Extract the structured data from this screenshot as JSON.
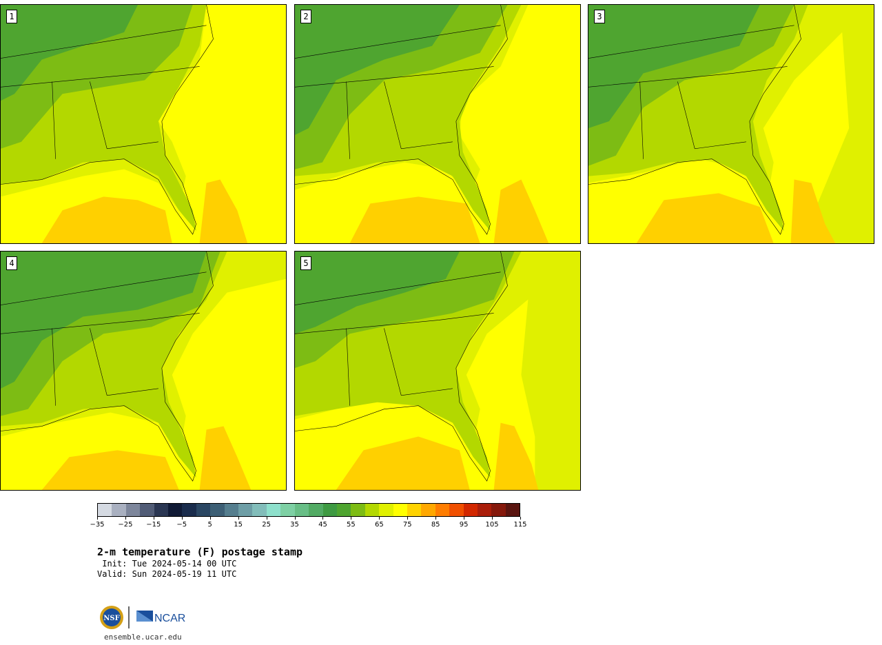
{
  "panels": [
    {
      "label": "1"
    },
    {
      "label": "2"
    },
    {
      "label": "3"
    },
    {
      "label": "4"
    },
    {
      "label": "5"
    }
  ],
  "colorbar": {
    "colors": [
      "#d5dae2",
      "#a9b0c0",
      "#7d869b",
      "#515c76",
      "#2a3652",
      "#101a35",
      "#1a2c4c",
      "#2a4662",
      "#3d5f75",
      "#557e8e",
      "#6e9ea6",
      "#82bdba",
      "#8ee0cc",
      "#7ed0a4",
      "#68be86",
      "#52ab64",
      "#3e9a42",
      "#4fa530",
      "#7dbc14",
      "#b3d800",
      "#e0f000",
      "#ffff00",
      "#ffd300",
      "#ffa800",
      "#ff7d00",
      "#f05000",
      "#d22800",
      "#aa1e0a",
      "#85190c",
      "#5a1510"
    ],
    "ticks": [
      "−35",
      "−25",
      "−15",
      "−5",
      "5",
      "15",
      "25",
      "35",
      "45",
      "55",
      "65",
      "75",
      "85",
      "95",
      "105",
      "115"
    ]
  },
  "title": "2-m temperature (F) postage stamp",
  "init": " Init: Tue 2024-05-14 00 UTC",
  "valid": "Valid: Sun 2024-05-19 11 UTC",
  "logos": {
    "org1": "NSF",
    "org2": "NCAR"
  },
  "footer_url": "ensemble.ucar.edu",
  "colors": {
    "warm_gulf": "#ffd000",
    "ocean": "#ffff00",
    "coastal": "#e0f000",
    "land_light": "#b3d800",
    "land_mid": "#7dbc14",
    "land_dark": "#4fa530"
  }
}
